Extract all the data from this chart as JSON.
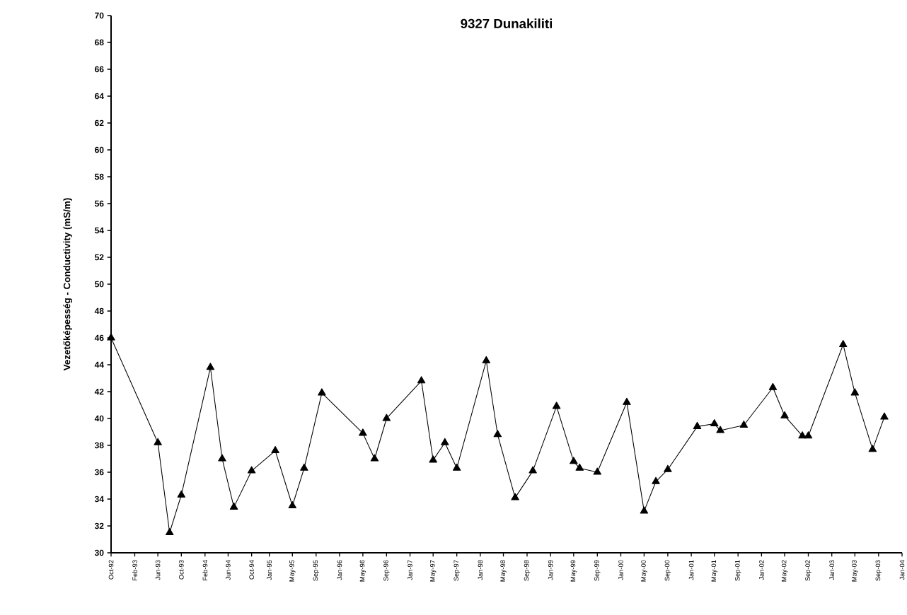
{
  "chart_data": {
    "type": "line",
    "title": "9327 Dunakiliti",
    "ylabel": "Vezetőképesség - Conductivity (mS/m)",
    "x": [
      "1992-10-01",
      "1993-06-01",
      "1993-08-01",
      "1993-10-01",
      "1994-03-01",
      "1994-05-01",
      "1994-07-01",
      "1994-10-01",
      "1995-02-01",
      "1995-05-01",
      "1995-07-01",
      "1995-10-01",
      "1996-05-01",
      "1996-07-01",
      "1996-09-01",
      "1997-03-01",
      "1997-05-01",
      "1997-07-01",
      "1997-09-01",
      "1998-02-01",
      "1998-04-01",
      "1998-07-01",
      "1998-10-01",
      "1999-02-01",
      "1999-05-01",
      "1999-06-01",
      "1999-09-01",
      "2000-02-01",
      "2000-05-01",
      "2000-07-01",
      "2000-09-01",
      "2001-02-01",
      "2001-05-01",
      "2001-06-01",
      "2001-10-01",
      "2002-03-01",
      "2002-05-01",
      "2002-08-01",
      "2002-09-01",
      "2003-03-01",
      "2003-05-01",
      "2003-08-01",
      "2003-10-01"
    ],
    "series": [
      {
        "color": "#000000",
        "values": [
          46.0,
          38.2,
          31.5,
          34.3,
          43.8,
          37.0,
          33.4,
          36.1,
          37.6,
          33.5,
          36.3,
          41.9,
          38.9,
          37.0,
          40.0,
          42.8,
          36.9,
          38.2,
          36.3,
          44.3,
          38.8,
          34.1,
          36.1,
          40.9,
          36.8,
          36.3,
          36.0,
          41.2,
          33.1,
          35.3,
          36.2,
          39.4,
          39.6,
          39.1,
          39.5,
          42.3,
          40.2,
          38.7,
          38.7,
          45.5,
          41.9,
          37.7,
          40.1
        ]
      }
    ],
    "marker": "triangle",
    "line_style": "solid",
    "xlim": [
      "1992-10-01",
      "2004-01-01"
    ],
    "xticks": [
      {
        "value": "1992-10-01",
        "label": "Oct-92"
      },
      {
        "value": "1993-02-01",
        "label": "Feb-93"
      },
      {
        "value": "1993-06-01",
        "label": "Jun-93"
      },
      {
        "value": "1993-10-01",
        "label": "Oct-93"
      },
      {
        "value": "1994-02-01",
        "label": "Feb-94"
      },
      {
        "value": "1994-06-01",
        "label": "Jun-94"
      },
      {
        "value": "1994-10-01",
        "label": "Oct-94"
      },
      {
        "value": "1995-01-01",
        "label": "Jan-95"
      },
      {
        "value": "1995-05-01",
        "label": "May-95"
      },
      {
        "value": "1995-09-01",
        "label": "Sep-95"
      },
      {
        "value": "1996-01-01",
        "label": "Jan-96"
      },
      {
        "value": "1996-05-01",
        "label": "May-96"
      },
      {
        "value": "1996-09-01",
        "label": "Sep-96"
      },
      {
        "value": "1997-01-01",
        "label": "Jan-97"
      },
      {
        "value": "1997-05-01",
        "label": "May-97"
      },
      {
        "value": "1997-09-01",
        "label": "Sep-97"
      },
      {
        "value": "1998-01-01",
        "label": "Jan-98"
      },
      {
        "value": "1998-05-01",
        "label": "May-98"
      },
      {
        "value": "1998-09-01",
        "label": "Sep-98"
      },
      {
        "value": "1999-01-01",
        "label": "Jan-99"
      },
      {
        "value": "1999-05-01",
        "label": "May-99"
      },
      {
        "value": "1999-09-01",
        "label": "Sep-99"
      },
      {
        "value": "2000-01-01",
        "label": "Jan-00"
      },
      {
        "value": "2000-05-01",
        "label": "May-00"
      },
      {
        "value": "2000-09-01",
        "label": "Sep-00"
      },
      {
        "value": "2001-01-01",
        "label": "Jan-01"
      },
      {
        "value": "2001-05-01",
        "label": "May-01"
      },
      {
        "value": "2001-09-01",
        "label": "Sep-01"
      },
      {
        "value": "2002-01-01",
        "label": "Jan-02"
      },
      {
        "value": "2002-05-01",
        "label": "May-02"
      },
      {
        "value": "2002-09-01",
        "label": "Sep-02"
      },
      {
        "value": "2003-01-01",
        "label": "Jan-03"
      },
      {
        "value": "2003-05-01",
        "label": "May-03"
      },
      {
        "value": "2003-09-01",
        "label": "Sep-03"
      },
      {
        "value": "2004-01-01",
        "label": "Jan-04"
      }
    ],
    "ylim": [
      30,
      70
    ],
    "yticks": [
      30,
      32,
      34,
      36,
      38,
      40,
      42,
      44,
      46,
      48,
      50,
      52,
      54,
      56,
      58,
      60,
      62,
      64,
      66,
      68,
      70
    ],
    "grid": false
  }
}
